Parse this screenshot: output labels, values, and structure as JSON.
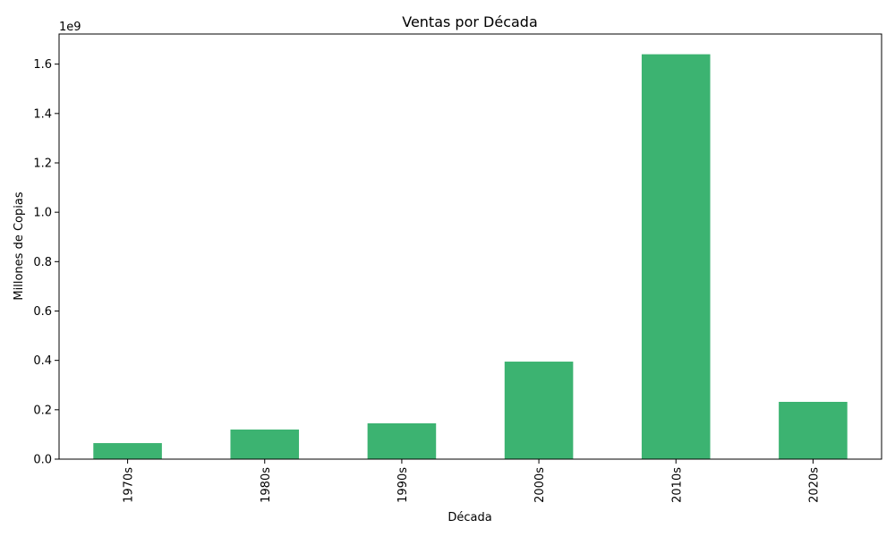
{
  "chart_data": {
    "type": "bar",
    "title": "Ventas por Década",
    "xlabel": "Década",
    "ylabel": "Millones de Copias",
    "scale_note": "1e9",
    "categories": [
      "1970s",
      "1980s",
      "1990s",
      "2000s",
      "2010s",
      "2020s"
    ],
    "values": [
      65000000,
      120000000,
      145000000,
      395000000,
      1640000000,
      232000000
    ],
    "ylim": [
      0,
      1722000000
    ],
    "yticks": [
      0,
      0.2,
      0.4,
      0.6,
      0.8,
      1.0,
      1.2,
      1.4,
      1.6
    ],
    "ytick_labels": [
      "0.0",
      "0.2",
      "0.4",
      "0.6",
      "0.8",
      "1.0",
      "1.2",
      "1.4",
      "1.6"
    ],
    "yticks_unit": 1000000000,
    "bar_color": "#3cb371",
    "grid": false,
    "legend": null
  }
}
